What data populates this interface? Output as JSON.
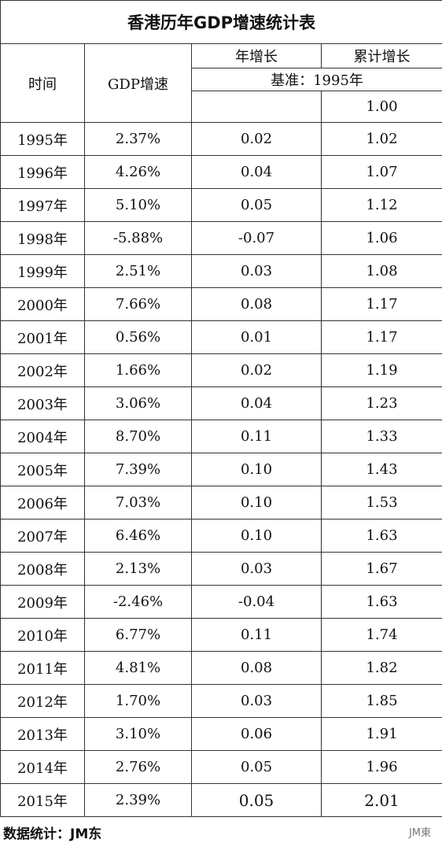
{
  "title": "香港历年GDP增速统计表",
  "header": {
    "time": "时间",
    "gdp": "GDP增速",
    "annual": "年增长",
    "cumulative": "累计增长",
    "baseline": "基准：1995年",
    "base_value": "1.00"
  },
  "table": {
    "rows": [
      [
        "1995年",
        "2.37%",
        "0.02",
        "1.02"
      ],
      [
        "1996年",
        "4.26%",
        "0.04",
        "1.07"
      ],
      [
        "1997年",
        "5.10%",
        "0.05",
        "1.12"
      ],
      [
        "1998年",
        "-5.88%",
        "-0.07",
        "1.06"
      ],
      [
        "1999年",
        "2.51%",
        "0.03",
        "1.08"
      ],
      [
        "2000年",
        "7.66%",
        "0.08",
        "1.17"
      ],
      [
        "2001年",
        "0.56%",
        "0.01",
        "1.17"
      ],
      [
        "2002年",
        "1.66%",
        "0.02",
        "1.19"
      ],
      [
        "2003年",
        "3.06%",
        "0.04",
        "1.23"
      ],
      [
        "2004年",
        "8.70%",
        "0.11",
        "1.33"
      ],
      [
        "2005年",
        "7.39%",
        "0.10",
        "1.43"
      ],
      [
        "2006年",
        "7.03%",
        "0.10",
        "1.53"
      ],
      [
        "2007年",
        "6.46%",
        "0.10",
        "1.63"
      ],
      [
        "2008年",
        "2.13%",
        "0.03",
        "1.67"
      ],
      [
        "2009年",
        "-2.46%",
        "-0.04",
        "1.63"
      ],
      [
        "2010年",
        "6.77%",
        "0.11",
        "1.74"
      ],
      [
        "2011年",
        "4.81%",
        "0.08",
        "1.82"
      ],
      [
        "2012年",
        "1.70%",
        "0.03",
        "1.85"
      ],
      [
        "2013年",
        "3.10%",
        "0.06",
        "1.91"
      ],
      [
        "2014年",
        "2.76%",
        "0.05",
        "1.96"
      ],
      [
        "2015年",
        "2.39%",
        "0.05",
        "2.01"
      ]
    ]
  },
  "footer": {
    "note": "数据统计：JM东",
    "watermark": "JM東"
  }
}
